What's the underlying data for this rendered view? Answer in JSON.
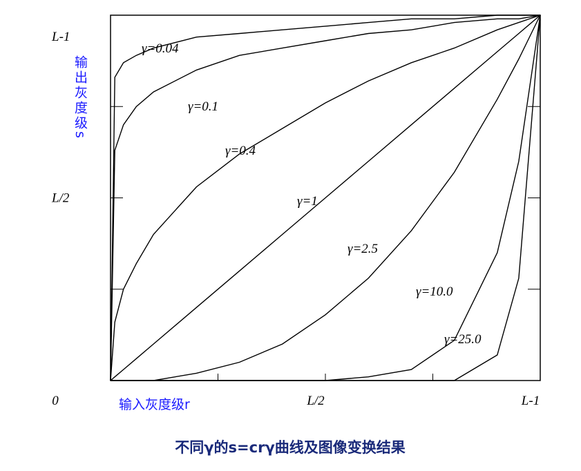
{
  "chart_data": {
    "type": "line",
    "title": "不同γ的s=crγ曲线及图像变换结果",
    "x_label": "输入灰度级r",
    "y_label": "输出灰度级s",
    "x": [
      0,
      0.01,
      0.03,
      0.06,
      0.1,
      0.2,
      0.3,
      0.4,
      0.5,
      0.6,
      0.7,
      0.8,
      0.9,
      0.95,
      1
    ],
    "series": [
      {
        "name": "γ=0.04",
        "color": "#000000",
        "values": [
          0,
          0.83,
          0.87,
          0.89,
          0.91,
          0.94,
          0.95,
          0.96,
          0.97,
          0.98,
          0.99,
          0.99,
          1.0,
          1.0,
          1
        ]
      },
      {
        "name": "γ=0.1",
        "color": "#000000",
        "values": [
          0,
          0.63,
          0.7,
          0.75,
          0.79,
          0.85,
          0.89,
          0.91,
          0.93,
          0.95,
          0.96,
          0.98,
          0.99,
          0.99,
          1
        ]
      },
      {
        "name": "γ=0.4",
        "color": "#000000",
        "values": [
          0,
          0.16,
          0.25,
          0.32,
          0.4,
          0.53,
          0.62,
          0.69,
          0.76,
          0.82,
          0.87,
          0.91,
          0.96,
          0.98,
          1
        ]
      },
      {
        "name": "γ=1",
        "color": "#000000",
        "values": [
          0,
          0.01,
          0.03,
          0.06,
          0.1,
          0.2,
          0.3,
          0.4,
          0.5,
          0.6,
          0.7,
          0.8,
          0.9,
          0.95,
          1
        ]
      },
      {
        "name": "γ=2.5",
        "color": "#000000",
        "values": [
          0,
          0,
          0,
          0,
          0.0,
          0.02,
          0.05,
          0.1,
          0.18,
          0.28,
          0.41,
          0.57,
          0.77,
          0.88,
          1
        ]
      },
      {
        "name": "γ=10.0",
        "color": "#000000",
        "values": [
          0,
          0,
          0,
          0,
          0,
          0,
          0,
          0,
          0,
          0.01,
          0.03,
          0.11,
          0.35,
          0.6,
          1
        ]
      },
      {
        "name": "γ=25.0",
        "color": "#000000",
        "values": [
          0,
          0,
          0,
          0,
          0,
          0,
          0,
          0,
          0,
          0,
          0,
          0.0,
          0.07,
          0.28,
          1
        ]
      }
    ],
    "xlim": [
      0,
      1
    ],
    "ylim": [
      0,
      1
    ],
    "xticks": [
      {
        "value": 0,
        "label": "0"
      },
      {
        "value": 0.25,
        "label": null
      },
      {
        "value": 0.5,
        "label": "L/2"
      },
      {
        "value": 0.75,
        "label": null
      },
      {
        "value": 1,
        "label": "L-1"
      }
    ],
    "yticks": [
      {
        "value": 0,
        "label": null
      },
      {
        "value": 0.25,
        "label": null
      },
      {
        "value": 0.5,
        "label": "L/2"
      },
      {
        "value": 0.75,
        "label": null
      },
      {
        "value": 1,
        "label": "L-1"
      }
    ]
  }
}
